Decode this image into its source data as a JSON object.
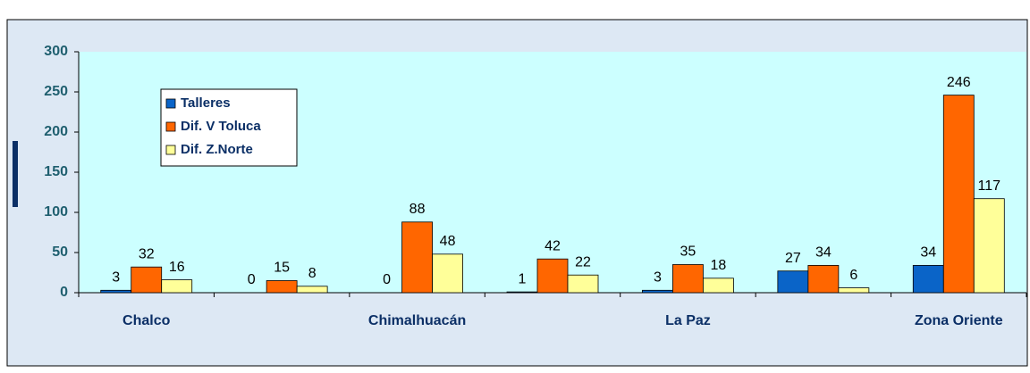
{
  "chart_data": {
    "type": "bar",
    "categories": [
      "Chalco",
      null,
      "Chimalhuacán",
      null,
      "La Paz",
      null,
      "Zona Oriente"
    ],
    "series": [
      {
        "name": "Talleres",
        "color": "#0a64c8",
        "values": [
          3,
          0,
          0,
          1,
          3,
          27,
          34
        ]
      },
      {
        "name": "Dif. V Toluca",
        "color": "#ff6600",
        "values": [
          32,
          15,
          88,
          42,
          35,
          34,
          246
        ]
      },
      {
        "name": "Dif. Z.Norte",
        "color": "#ffff99",
        "values": [
          16,
          8,
          48,
          22,
          18,
          6,
          117
        ]
      }
    ],
    "ylim": [
      0,
      300
    ],
    "yticks": [
      0,
      50,
      100,
      150,
      200,
      250,
      300
    ],
    "grid": false,
    "legend": "top-left"
  }
}
